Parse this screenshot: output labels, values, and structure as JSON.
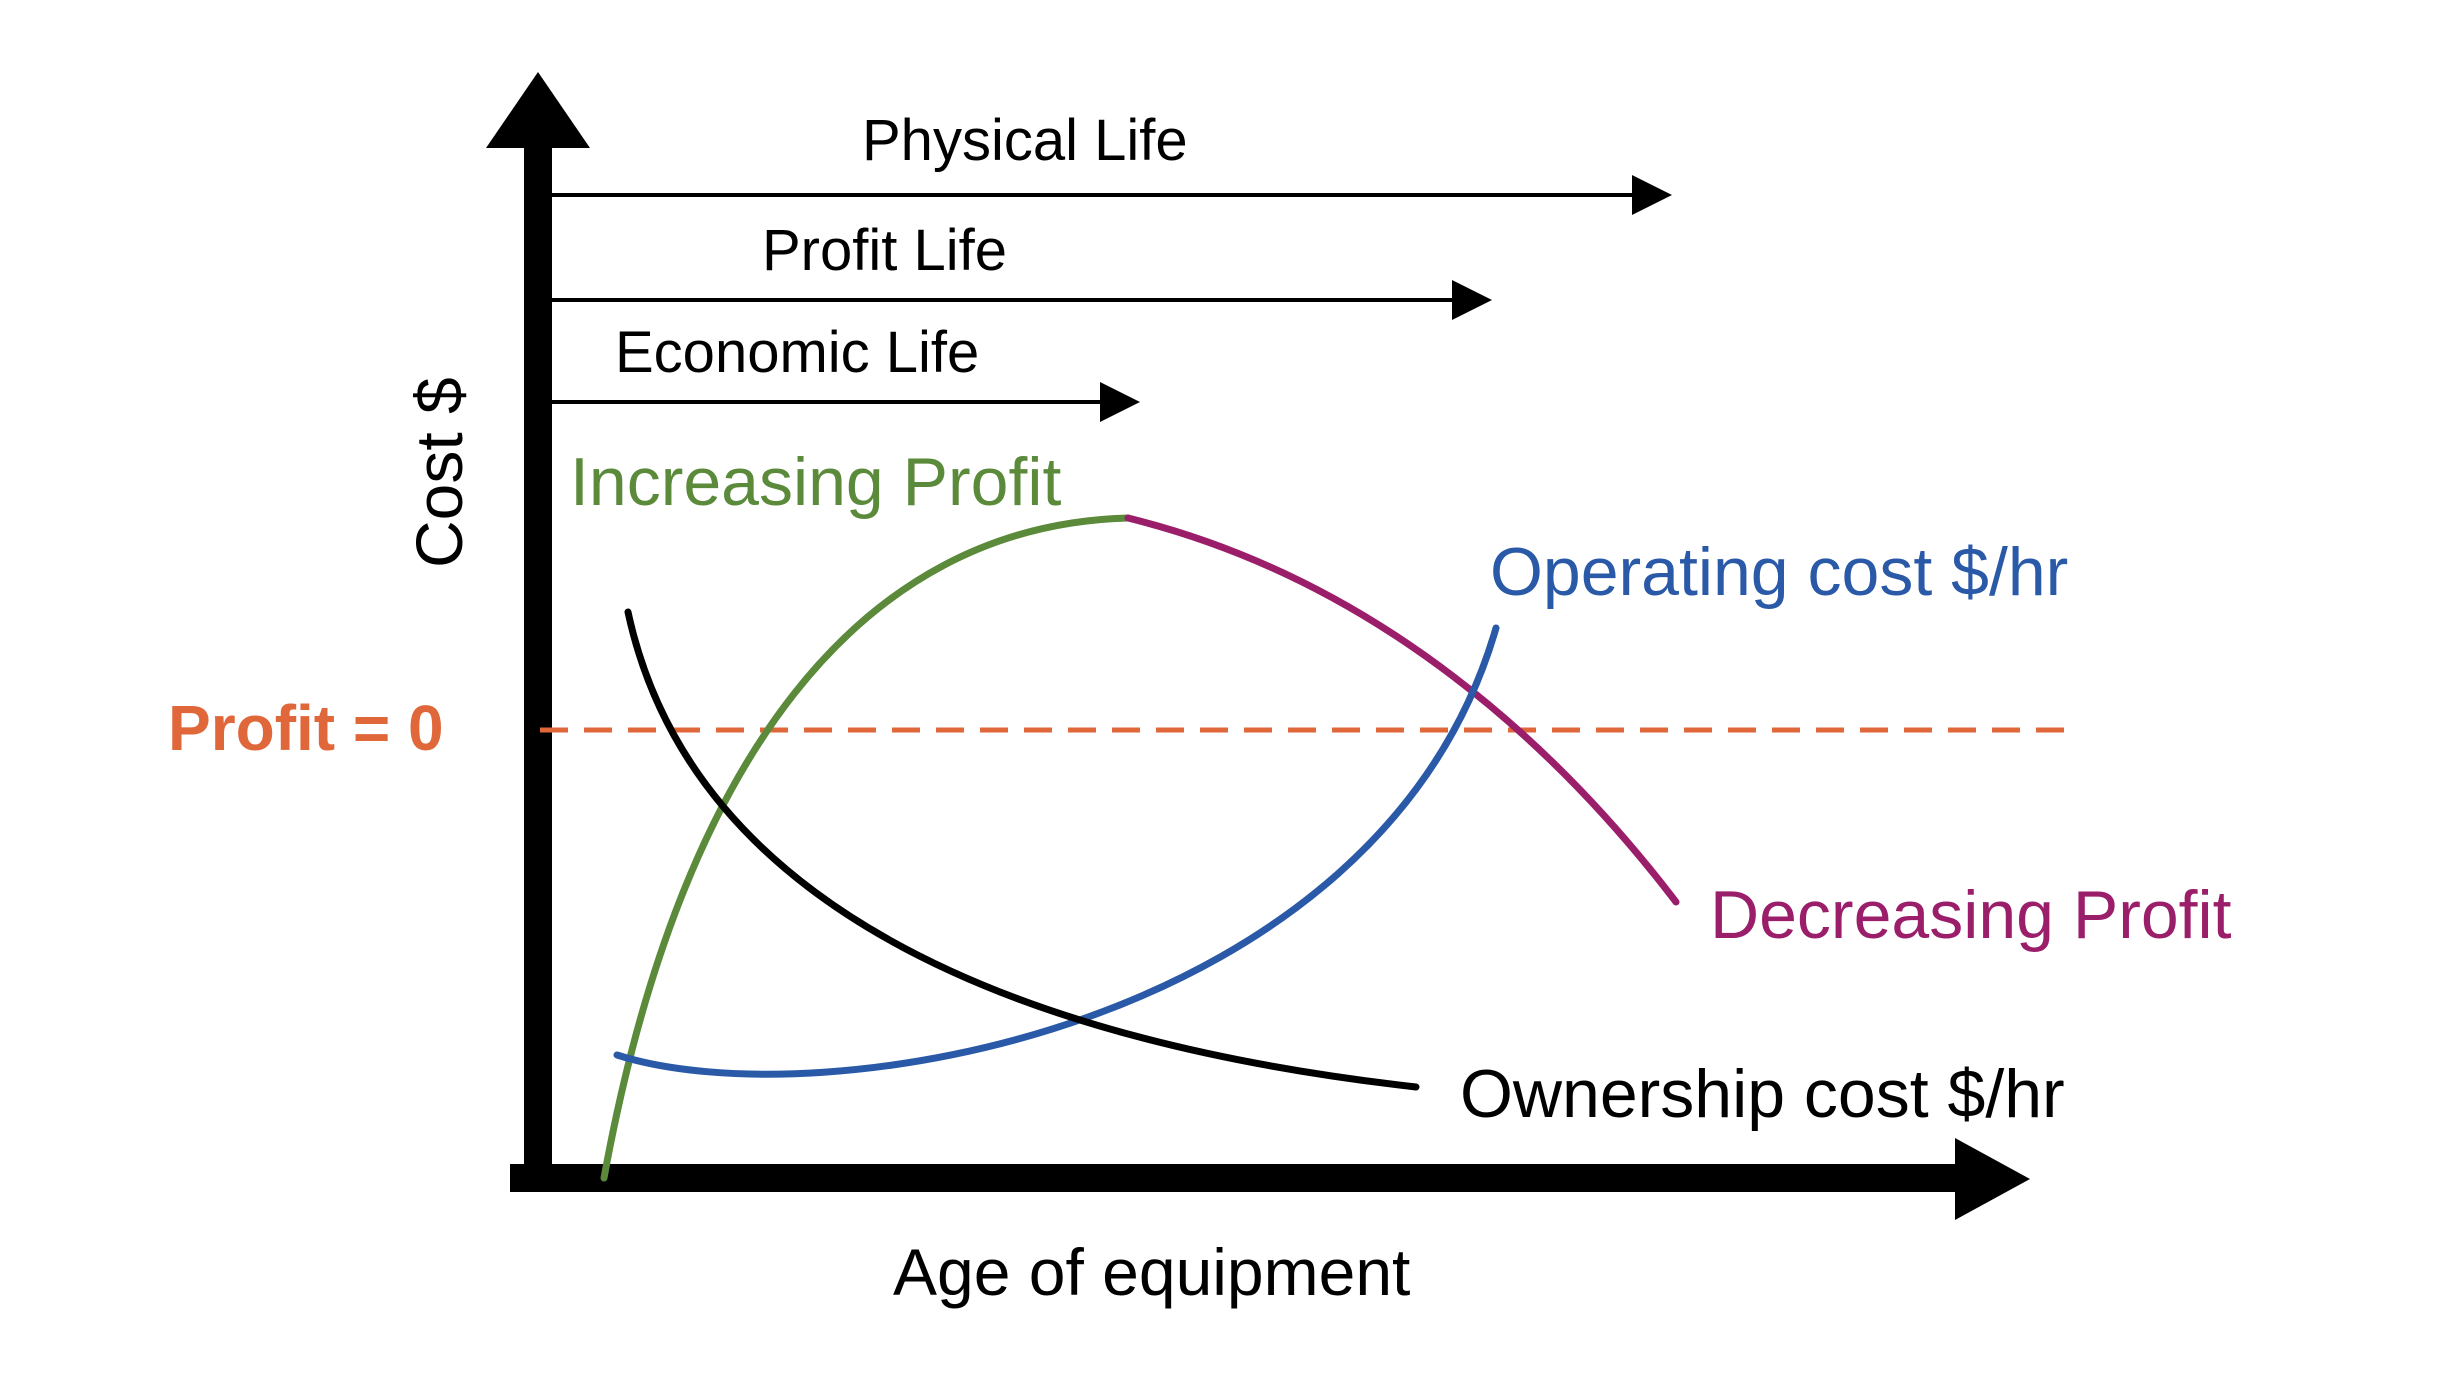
{
  "axes": {
    "x_label": "Age of equipment",
    "y_label": "Cost $"
  },
  "lifespans": [
    {
      "id": "physical",
      "label": "Physical Life"
    },
    {
      "id": "profit",
      "label": "Profit Life"
    },
    {
      "id": "economic",
      "label": "Economic Life"
    }
  ],
  "reference_line": {
    "label": "Profit = 0"
  },
  "curves": {
    "increasing_profit": {
      "label": "Increasing Profit"
    },
    "decreasing_profit": {
      "label": "Decreasing Profit"
    },
    "operating_cost": {
      "label": "Operating cost $/hr"
    },
    "ownership_cost": {
      "label": "Ownership cost $/hr"
    }
  },
  "colors": {
    "axis": "#000000",
    "increasing_profit": "#5a8a3a",
    "decreasing_profit": "#9b1e6b",
    "operating_cost": "#2a59a8",
    "ownership_cost": "#000000",
    "reference_line": "#e0673a"
  }
}
